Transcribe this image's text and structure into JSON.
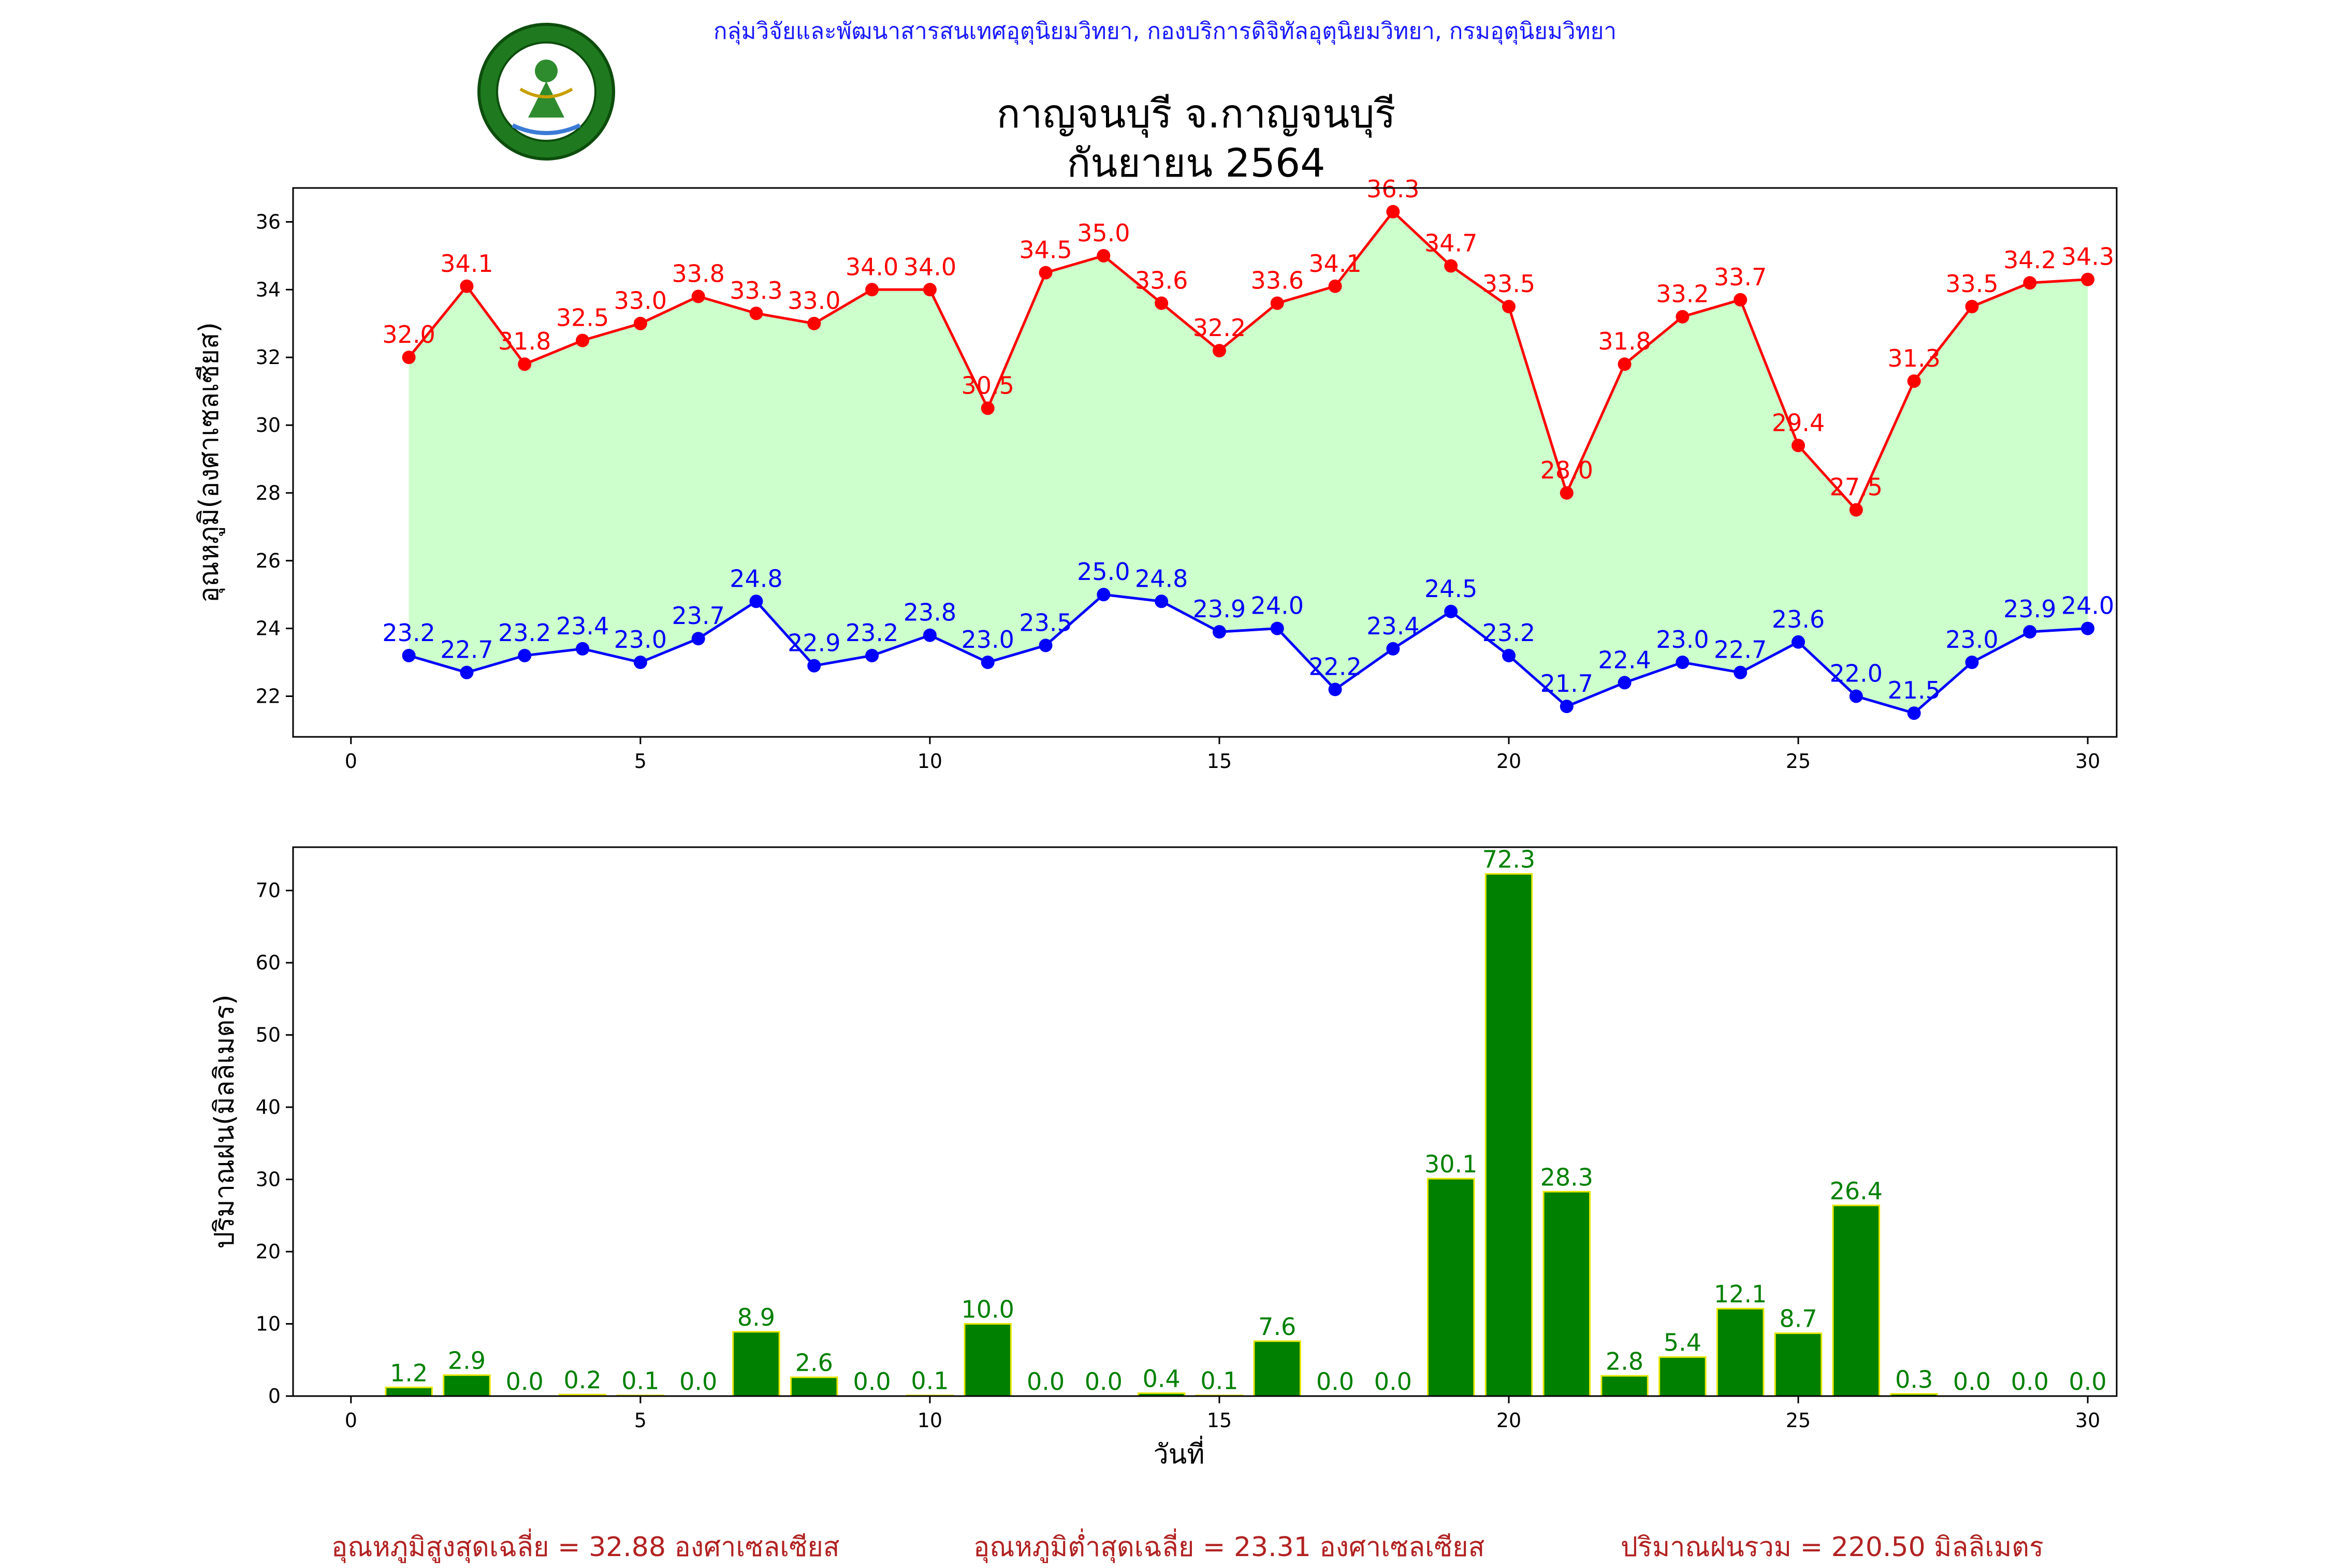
{
  "header": {
    "organization": "กลุ่มวิจัยและพัฒนาสารสนเทศอุตุนิยมวิทยา, กองบริการดิจิทัลอุตุนิยมวิทยา, กรมอุตุนิยมวิทยา"
  },
  "logo": {
    "icon": "meteorological-department-seal-icon",
    "colors": {
      "ring": "#1f7a1f",
      "inner": "#ffffff",
      "figure": "#2e8b2e"
    }
  },
  "title": {
    "line1": "กาญจนบุรี จ.กาญจนบุรี",
    "line2": "กันยายน 2564"
  },
  "chart_data": [
    {
      "type": "line",
      "ylabel": "อุณหภูมิ(องศาเซลเซียส)",
      "xlim": [
        -1,
        30.5
      ],
      "ylim": [
        20.8,
        37.0
      ],
      "x_ticks": [
        0,
        5,
        10,
        15,
        20,
        25,
        30
      ],
      "y_ticks": [
        22,
        24,
        26,
        28,
        30,
        32,
        34,
        36
      ],
      "fill_between": {
        "color": "#ccffcc"
      },
      "x": [
        1,
        2,
        3,
        4,
        5,
        6,
        7,
        8,
        9,
        10,
        11,
        12,
        13,
        14,
        15,
        16,
        17,
        18,
        19,
        20,
        21,
        22,
        23,
        24,
        25,
        26,
        27,
        28,
        29,
        30
      ],
      "series": [
        {
          "color": "#ff0000",
          "values": [
            32.0,
            34.1,
            31.8,
            32.5,
            33.0,
            33.8,
            33.3,
            33.0,
            34.0,
            34.0,
            30.5,
            34.5,
            35.0,
            33.6,
            32.2,
            33.6,
            34.1,
            36.3,
            34.7,
            33.5,
            28.0,
            31.8,
            33.2,
            33.7,
            29.4,
            27.5,
            31.3,
            33.5,
            34.2,
            34.3
          ],
          "labels": [
            "32.0",
            "34.1",
            "31.8",
            "32.5",
            "33.0",
            "33.8",
            "33.3",
            "33.0",
            "34.0",
            "34.0",
            "30.5",
            "34.5",
            "35.0",
            "33.6",
            "32.2",
            "33.6",
            "34.1",
            "36.3",
            "34.7",
            "33.5",
            "28.0",
            "31.8",
            "33.2",
            "33.7",
            "29.4",
            "27.5",
            "31.3",
            "33.5",
            "34.2",
            "34.3"
          ]
        },
        {
          "color": "#0000ff",
          "values": [
            23.2,
            22.7,
            23.2,
            23.4,
            23.0,
            23.7,
            24.8,
            22.9,
            23.2,
            23.8,
            23.0,
            23.5,
            25.0,
            24.8,
            23.9,
            24.0,
            22.2,
            23.4,
            24.5,
            23.2,
            21.7,
            22.4,
            23.0,
            22.7,
            23.6,
            22.0,
            21.5,
            23.0,
            23.9,
            24.0
          ],
          "labels": [
            "23.2",
            "22.7",
            "23.2",
            "23.4",
            "23.0",
            "23.7",
            "24.8",
            "22.9",
            "23.2",
            "23.8",
            "23.0",
            "23.5",
            "25.0",
            "24.8",
            "23.9",
            "24.0",
            "22.2",
            "23.4",
            "24.5",
            "23.2",
            "21.7",
            "22.4",
            "23.0",
            "22.7",
            "23.6",
            "22.0",
            "21.5",
            "23.0",
            "23.9",
            "24.0"
          ]
        }
      ]
    },
    {
      "type": "bar",
      "xlabel": "วันที่",
      "ylabel": "ปริมาณฝน(มิลลิเมตร)",
      "xlim": [
        -1,
        30.5
      ],
      "ylim": [
        0,
        76
      ],
      "x_ticks": [
        0,
        5,
        10,
        15,
        20,
        25,
        30
      ],
      "y_ticks": [
        0,
        10,
        20,
        30,
        40,
        50,
        60,
        70
      ],
      "bar_color": "#008000",
      "edge_color": "#e6e600",
      "label_color": "#008000",
      "x": [
        1,
        2,
        3,
        4,
        5,
        6,
        7,
        8,
        9,
        10,
        11,
        12,
        13,
        14,
        15,
        16,
        17,
        18,
        19,
        20,
        21,
        22,
        23,
        24,
        25,
        26,
        27,
        28,
        29,
        30
      ],
      "values": [
        1.2,
        2.9,
        0.0,
        0.2,
        0.1,
        0.0,
        8.9,
        2.6,
        0.0,
        0.1,
        10.0,
        0.0,
        0.0,
        0.4,
        0.1,
        7.6,
        0.0,
        0.0,
        30.1,
        72.3,
        28.3,
        2.8,
        5.4,
        12.1,
        8.7,
        26.4,
        0.3,
        0.0,
        0.0,
        0.0
      ],
      "labels": [
        "1.2",
        "2.9",
        "0.0",
        "0.2",
        "0.1",
        "0.0",
        "8.9",
        "2.6",
        "0.0",
        "0.1",
        "10.0",
        "0.0",
        "0.0",
        "0.4",
        "0.1",
        "7.6",
        "0.0",
        "0.0",
        "30.1",
        "72.3",
        "28.3",
        "2.8",
        "5.4",
        "12.1",
        "8.7",
        "26.4",
        "0.3",
        "0.0",
        "0.0",
        "0.0"
      ]
    }
  ],
  "footer": {
    "avg_max": "อุณหภูมิสูงสุดเฉลี่ย = 32.88 องศาเซลเซียส",
    "avg_min": "อุณหภูมิต่ำสุดเฉลี่ย = 23.31 องศาเซลเซียส",
    "total_rain": "ปริมาณฝนรวม = 220.50 มิลลิเมตร"
  }
}
